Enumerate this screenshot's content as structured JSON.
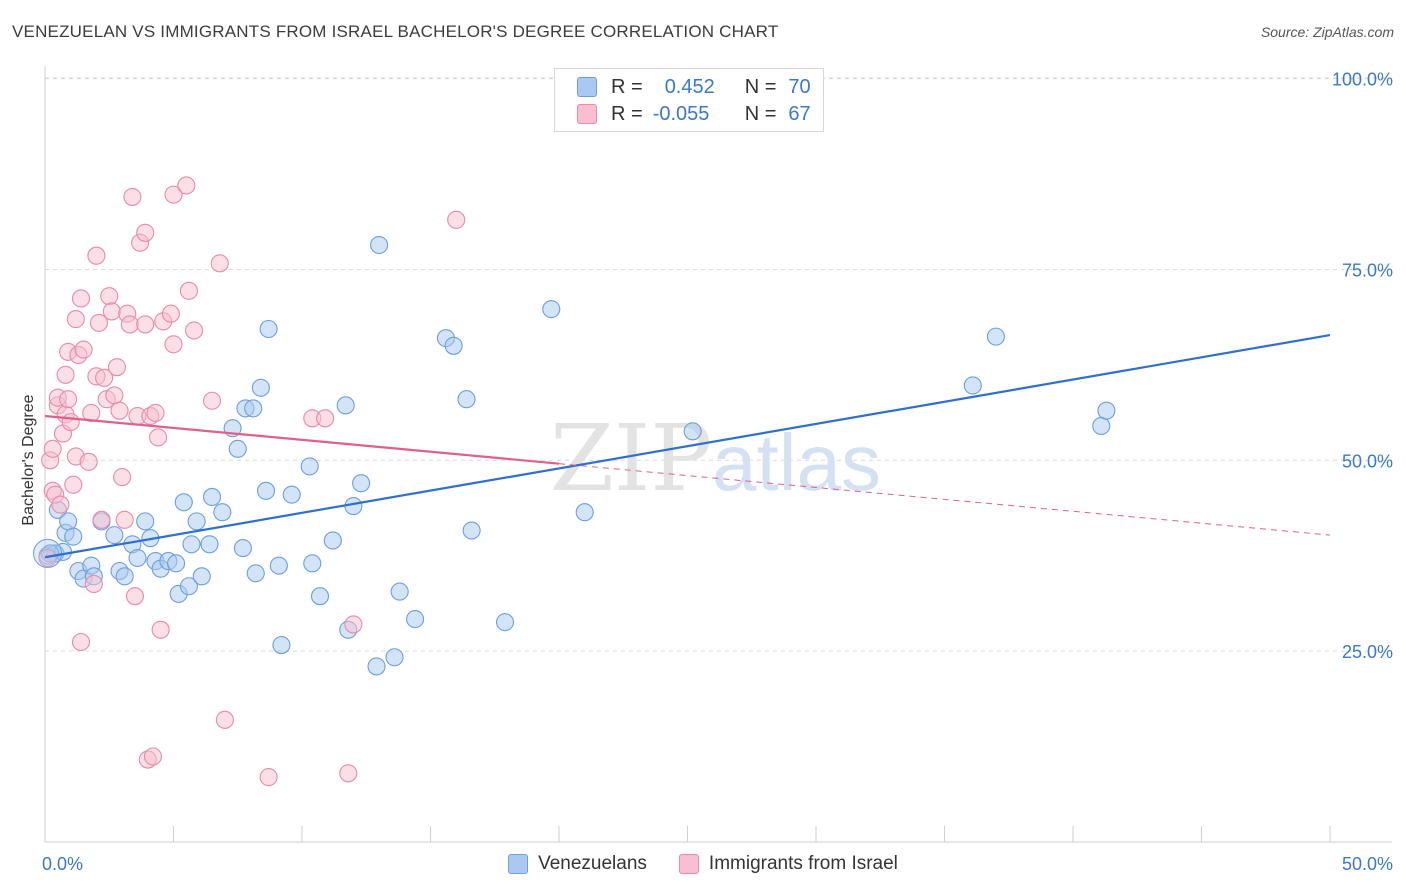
{
  "header": {
    "title": "VENEZUELAN VS IMMIGRANTS FROM ISRAEL BACHELOR'S DEGREE CORRELATION CHART",
    "source": "Source: ZipAtlas.com"
  },
  "watermark": {
    "zip": "ZIP",
    "atlas": "atlas"
  },
  "legend": {
    "r_label": "R =",
    "n_label": "N =",
    "rows": [
      {
        "r": "0.452",
        "n": "70",
        "color": "#a9c9f0",
        "border": "#6d9edc"
      },
      {
        "r": "-0.055",
        "n": "67",
        "color": "#f7bfd0",
        "border": "#e88aa8"
      }
    ]
  },
  "colors": {
    "blue_fill": "#a9c9f0",
    "blue_stroke": "#6d9edc",
    "blue_line": "#2f6fd0",
    "pink_fill": "#f7bfd0",
    "pink_stroke": "#e88aa8",
    "pink_line": "#e0608a",
    "tick_label": "#3b78c9",
    "grid": "#d9d9d9"
  },
  "chart_data": {
    "type": "scatter",
    "title": "VENEZUELAN VS IMMIGRANTS FROM ISRAEL BACHELOR'S DEGREE CORRELATION CHART",
    "xlabel": "",
    "ylabel": "Bachelor's Degree",
    "xlim": [
      0,
      50
    ],
    "ylim": [
      0,
      105
    ],
    "x_tick_labels": [
      "0.0%",
      "50.0%"
    ],
    "y_ticks": [
      25,
      50,
      75,
      100
    ],
    "y_tick_labels": [
      "25.0%",
      "50.0%",
      "75.0%",
      "100.0%"
    ],
    "grid": true,
    "series": [
      {
        "name": "Venezuelans",
        "r": 0.452,
        "n": 70,
        "trend": {
          "x": [
            0,
            50
          ],
          "y": [
            37.3,
            66.4
          ],
          "dashed_from": null
        },
        "points": [
          [
            0.1,
            37.5
          ],
          [
            0.4,
            37.8
          ],
          [
            0.5,
            43.5
          ],
          [
            0.7,
            38.0
          ],
          [
            0.8,
            40.5
          ],
          [
            0.9,
            42.0
          ],
          [
            1.1,
            40.0
          ],
          [
            1.3,
            35.5
          ],
          [
            1.5,
            34.5
          ],
          [
            1.8,
            36.2
          ],
          [
            1.9,
            34.8
          ],
          [
            2.2,
            42.0
          ],
          [
            2.7,
            40.2
          ],
          [
            2.9,
            35.5
          ],
          [
            3.1,
            34.8
          ],
          [
            3.4,
            39.0
          ],
          [
            3.6,
            37.2
          ],
          [
            3.9,
            42.0
          ],
          [
            4.1,
            39.8
          ],
          [
            4.3,
            36.8
          ],
          [
            4.5,
            35.8
          ],
          [
            4.8,
            36.8
          ],
          [
            5.1,
            36.5
          ],
          [
            5.2,
            32.5
          ],
          [
            5.4,
            44.5
          ],
          [
            5.6,
            33.5
          ],
          [
            5.7,
            39.0
          ],
          [
            5.9,
            42.0
          ],
          [
            6.1,
            34.8
          ],
          [
            6.4,
            39.0
          ],
          [
            6.5,
            45.2
          ],
          [
            6.9,
            43.2
          ],
          [
            7.3,
            54.2
          ],
          [
            7.5,
            51.5
          ],
          [
            7.7,
            38.5
          ],
          [
            7.8,
            56.8
          ],
          [
            8.1,
            56.8
          ],
          [
            8.2,
            35.2
          ],
          [
            8.4,
            59.5
          ],
          [
            8.6,
            46.0
          ],
          [
            8.7,
            67.2
          ],
          [
            9.1,
            36.2
          ],
          [
            9.2,
            25.8
          ],
          [
            9.6,
            45.5
          ],
          [
            10.3,
            49.2
          ],
          [
            10.4,
            36.5
          ],
          [
            10.7,
            32.2
          ],
          [
            11.2,
            39.5
          ],
          [
            11.7,
            57.2
          ],
          [
            11.8,
            27.8
          ],
          [
            12.0,
            44.0
          ],
          [
            12.3,
            47.0
          ],
          [
            12.9,
            23.0
          ],
          [
            13.0,
            78.2
          ],
          [
            13.6,
            24.2
          ],
          [
            13.8,
            32.8
          ],
          [
            14.4,
            29.2
          ],
          [
            15.6,
            66.0
          ],
          [
            15.9,
            65.0
          ],
          [
            16.4,
            58.0
          ],
          [
            16.6,
            40.8
          ],
          [
            17.9,
            28.8
          ],
          [
            19.7,
            69.8
          ],
          [
            21.0,
            43.2
          ],
          [
            25.2,
            53.8
          ],
          [
            36.1,
            59.8
          ],
          [
            37.0,
            66.2
          ],
          [
            41.1,
            54.5
          ],
          [
            41.3,
            56.5
          ],
          [
            0.2,
            37.8
          ]
        ]
      },
      {
        "name": "Immigrants from Israel",
        "r": -0.055,
        "n": 67,
        "trend": {
          "x": [
            0,
            50
          ],
          "y": [
            55.8,
            40.2
          ],
          "dashed_from": 20
        },
        "points": [
          [
            0.1,
            37.2
          ],
          [
            0.2,
            50.0
          ],
          [
            0.3,
            46.0
          ],
          [
            0.3,
            51.5
          ],
          [
            0.4,
            45.5
          ],
          [
            0.5,
            57.2
          ],
          [
            0.5,
            58.2
          ],
          [
            0.6,
            44.2
          ],
          [
            0.7,
            53.5
          ],
          [
            0.8,
            56.0
          ],
          [
            0.8,
            61.2
          ],
          [
            0.9,
            58.0
          ],
          [
            0.9,
            64.2
          ],
          [
            1.0,
            55.0
          ],
          [
            1.1,
            46.8
          ],
          [
            1.2,
            50.5
          ],
          [
            1.2,
            68.5
          ],
          [
            1.3,
            63.8
          ],
          [
            1.4,
            71.2
          ],
          [
            1.4,
            26.2
          ],
          [
            1.5,
            64.5
          ],
          [
            1.7,
            49.8
          ],
          [
            1.8,
            56.2
          ],
          [
            1.9,
            33.8
          ],
          [
            2.0,
            61.0
          ],
          [
            2.0,
            76.8
          ],
          [
            2.1,
            68.0
          ],
          [
            2.2,
            42.2
          ],
          [
            2.3,
            60.8
          ],
          [
            2.4,
            58.0
          ],
          [
            2.5,
            71.5
          ],
          [
            2.6,
            69.5
          ],
          [
            2.7,
            58.5
          ],
          [
            2.8,
            62.2
          ],
          [
            2.9,
            56.5
          ],
          [
            3.0,
            47.8
          ],
          [
            3.1,
            42.2
          ],
          [
            3.2,
            69.2
          ],
          [
            3.3,
            67.8
          ],
          [
            3.4,
            84.5
          ],
          [
            3.5,
            32.2
          ],
          [
            3.6,
            55.8
          ],
          [
            3.7,
            78.5
          ],
          [
            3.9,
            67.8
          ],
          [
            3.9,
            79.8
          ],
          [
            4.0,
            10.8
          ],
          [
            4.1,
            55.8
          ],
          [
            4.2,
            11.2
          ],
          [
            4.3,
            56.2
          ],
          [
            4.4,
            53.0
          ],
          [
            4.5,
            27.8
          ],
          [
            4.6,
            68.2
          ],
          [
            4.9,
            69.2
          ],
          [
            5.0,
            65.2
          ],
          [
            5.0,
            84.8
          ],
          [
            5.5,
            86.0
          ],
          [
            5.6,
            72.2
          ],
          [
            5.8,
            67.0
          ],
          [
            6.5,
            57.8
          ],
          [
            6.8,
            75.8
          ],
          [
            7.0,
            16.0
          ],
          [
            8.7,
            8.5
          ],
          [
            10.4,
            55.5
          ],
          [
            10.9,
            55.5
          ],
          [
            11.8,
            9.0
          ],
          [
            12.0,
            28.5
          ],
          [
            16.0,
            81.5
          ]
        ]
      }
    ]
  }
}
